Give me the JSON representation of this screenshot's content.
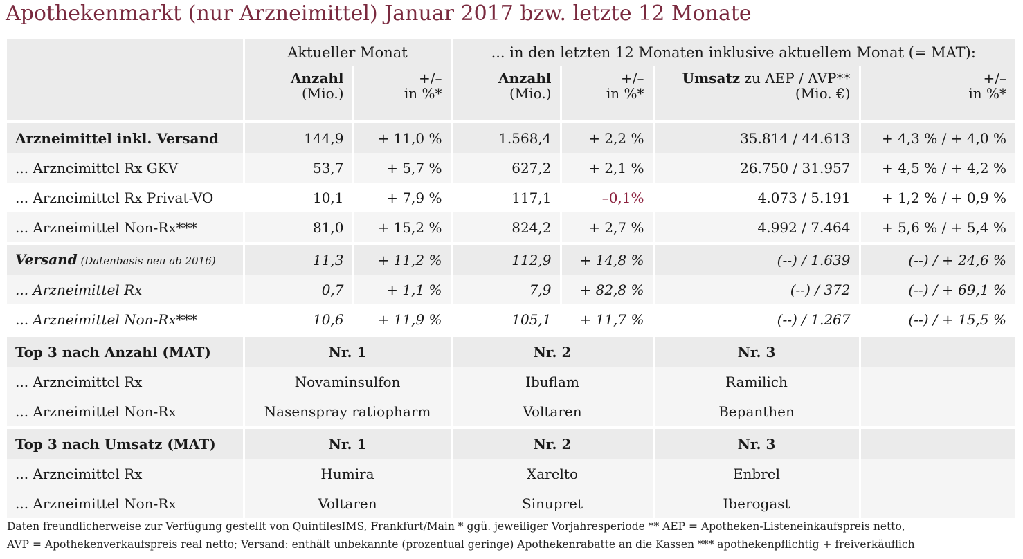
{
  "title": "Apothekenmarkt (nur Arzneimittel) Januar 2017 bzw. letzte 12 Monate",
  "header": {
    "group_current": "Aktueller Monat",
    "group_mat": "... in den letzten 12 Monaten inklusive aktuellem Monat (= MAT):",
    "col_anzahl": "Anzahl",
    "col_mio": "(Mio.)",
    "col_pm": "+/–",
    "col_pct": "in %*",
    "col_umsatz_bold": "Umsatz",
    "col_umsatz_rest": " zu AEP / AVP**",
    "col_mio_eur": "(Mio. €)"
  },
  "rows": [
    {
      "label": "Arzneimittel inkl. Versand",
      "v": [
        "144,9",
        "+ 11,0 %",
        "1.568,4",
        "+ 2,2 %",
        "35.814 / 44.613",
        "+ 4,3 % / + 4,0 %"
      ]
    },
    {
      "label": "... Arzneimittel Rx GKV",
      "v": [
        "53,7",
        "+ 5,7 %",
        "627,2",
        "+ 2,1 %",
        "26.750 / 31.957",
        "+ 4,5 % / + 4,2 %"
      ]
    },
    {
      "label": "... Arzneimittel Rx Privat-VO",
      "v": [
        "10,1",
        "+ 7,9 %",
        "117,1",
        "–0,1%",
        "4.073 / 5.191",
        "+ 1,2 % / + 0,9 %"
      ]
    },
    {
      "label": "... Arzneimittel Non-Rx***",
      "v": [
        "81,0",
        "+ 15,2 %",
        "824,2",
        "+ 2,7 %",
        "4.992 / 7.464",
        "+ 5,6 % / + 5,4 %"
      ]
    }
  ],
  "versand": {
    "label": "Versand",
    "note": " (Datenbasis neu ab 2016)",
    "v": [
      "11,3",
      "+ 11,2 %",
      "112,9",
      "+ 14,8 %",
      "(--) / 1.639",
      "(--) / + 24,6 %"
    ],
    "rows": [
      {
        "label": "... Arzneimittel Rx",
        "v": [
          "0,7",
          "+ 1,1 %",
          "7,9",
          "+ 82,8 %",
          "(--) / 372",
          "(--) / + 69,1 %"
        ]
      },
      {
        "label": "... Arzneimittel Non-Rx***",
        "v": [
          "10,6",
          "+ 11,9 %",
          "105,1",
          "+ 11,7 %",
          "(--) / 1.267",
          "(--) / + 15,5 %"
        ]
      }
    ]
  },
  "top_anzahl": {
    "label": "Top 3 nach Anzahl (MAT)",
    "ranks": [
      "Nr. 1",
      "Nr. 2",
      "Nr. 3"
    ],
    "rows": [
      {
        "label": "... Arzneimittel Rx",
        "v": [
          "Novaminsulfon",
          "Ibuflam",
          "Ramilich"
        ]
      },
      {
        "label": "... Arzneimittel Non-Rx",
        "v": [
          "Nasenspray ratiopharm",
          "Voltaren",
          "Bepanthen"
        ]
      }
    ]
  },
  "top_umsatz": {
    "label": "Top 3 nach Umsatz (MAT)",
    "ranks": [
      "Nr. 1",
      "Nr. 2",
      "Nr. 3"
    ],
    "rows": [
      {
        "label": "... Arzneimittel Rx",
        "v": [
          "Humira",
          "Xarelto",
          "Enbrel"
        ]
      },
      {
        "label": "... Arzneimittel Non-Rx",
        "v": [
          "Voltaren",
          "Sinupret",
          "Iberogast"
        ]
      }
    ]
  },
  "footnote": {
    "line1": "Daten freundlicherweise zur Verfügung gestellt von QuintilesIMS, Frankfurt/Main   * ggü. jeweiliger Vorjahresperiode   ** AEP = Apotheken-Listeneinkaufspreis netto,",
    "line2": "AVP = Apothekenverkaufspreis real netto; Versand: enthält unbekannte (prozentual geringe) Apothekenrabatte an die Kassen   *** apothekenpflichtig + freiverkäuflich"
  },
  "colors": {
    "title": "#7a2a3f",
    "negative": "#8a1f3c",
    "shade": "#ebebeb",
    "light": "#f5f5f5"
  }
}
